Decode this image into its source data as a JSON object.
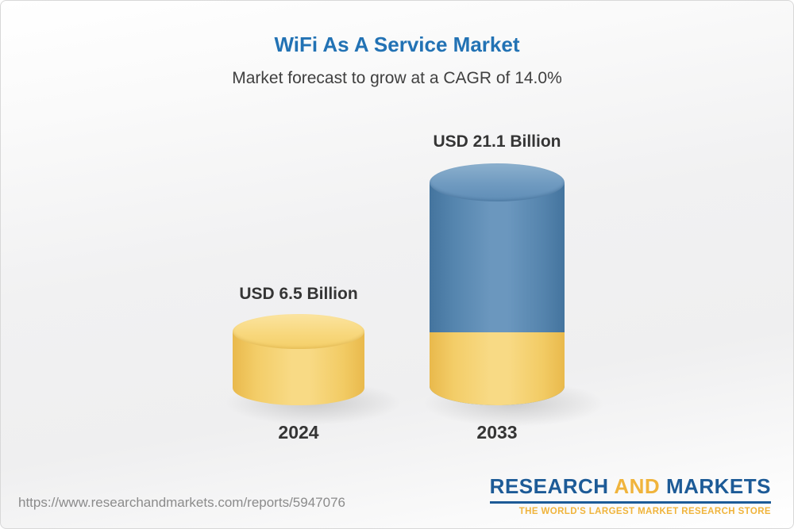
{
  "header": {
    "title": "WiFi As A Service Market",
    "subtitle": "Market forecast to grow at a CAGR of 14.0%"
  },
  "chart_data": {
    "type": "bar",
    "title": "WiFi As A Service Market",
    "subtitle": "Market forecast to grow at a CAGR of 14.0%",
    "categories": [
      "2024",
      "2033"
    ],
    "values": [
      6.5,
      21.1
    ],
    "unit": "USD Billion",
    "value_labels": [
      "USD 6.5 Billion",
      "USD 21.1 Billion"
    ],
    "cagr_percent": 14.0,
    "bar_colors": [
      "#f5cf6d",
      "#5b89b4"
    ],
    "legend": "off",
    "grid": "off",
    "style": "3d-cylinder"
  },
  "bars": [
    {
      "year": "2024",
      "value_label": "USD 6.5 Billion",
      "color": "#f5cf6d"
    },
    {
      "year": "2033",
      "value_label": "USD 21.1 Billion",
      "color": "#5b89b4"
    }
  ],
  "footer": {
    "url": "https://www.researchandmarkets.com/reports/5947076",
    "logo": {
      "part1": "RESEARCH",
      "part2": "AND",
      "part3": "MARKETS",
      "tagline": "THE WORLD'S LARGEST MARKET RESEARCH STORE"
    }
  },
  "colors": {
    "title_blue": "#2272b4",
    "logo_blue": "#1d5b97",
    "logo_gold": "#f0b43c",
    "bar_yellow": "#f5cf6d",
    "bar_blue": "#5b89b4"
  }
}
